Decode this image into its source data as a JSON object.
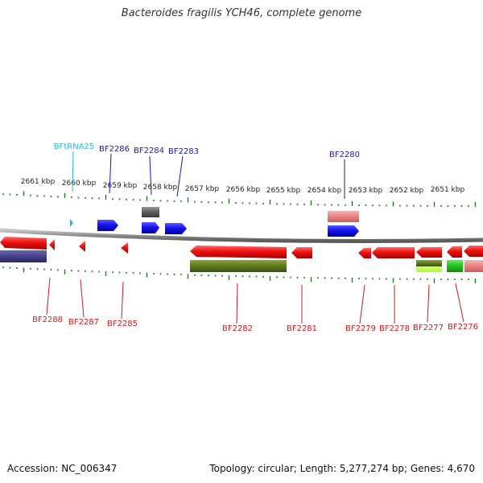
{
  "title": "Bacteroides fragilis YCH46, complete genome",
  "footer": {
    "accession": "Accession: NC_006347",
    "summary": "Topology: circular; Length: 5,277,274 bp; Genes: 4,670"
  },
  "colors": {
    "ruler": "#1f7a1f",
    "backbone": "#8c8c8c",
    "top_label": "#1a1aa6",
    "bottom_label": "#c81e1e",
    "rna_label": "#2ab4d4"
  },
  "scale_labels": [
    "2661 kbp",
    "2660 kbp",
    "2659 kbp",
    "2658 kbp",
    "2657 kbp",
    "2656 kbp",
    "2655 kbp",
    "2654 kbp",
    "2653 kbp",
    "2652 kbp",
    "2651 kbp"
  ],
  "top_labels": [
    "BFtRNA25",
    "BF2286",
    "BF2284",
    "BF2283",
    "BF2280"
  ],
  "bottom_labels": [
    "BF2288",
    "BF2287",
    "BF2285",
    "BF2282",
    "BF2281",
    "BF2279",
    "BF2278",
    "BF2277",
    "BF2276"
  ]
}
